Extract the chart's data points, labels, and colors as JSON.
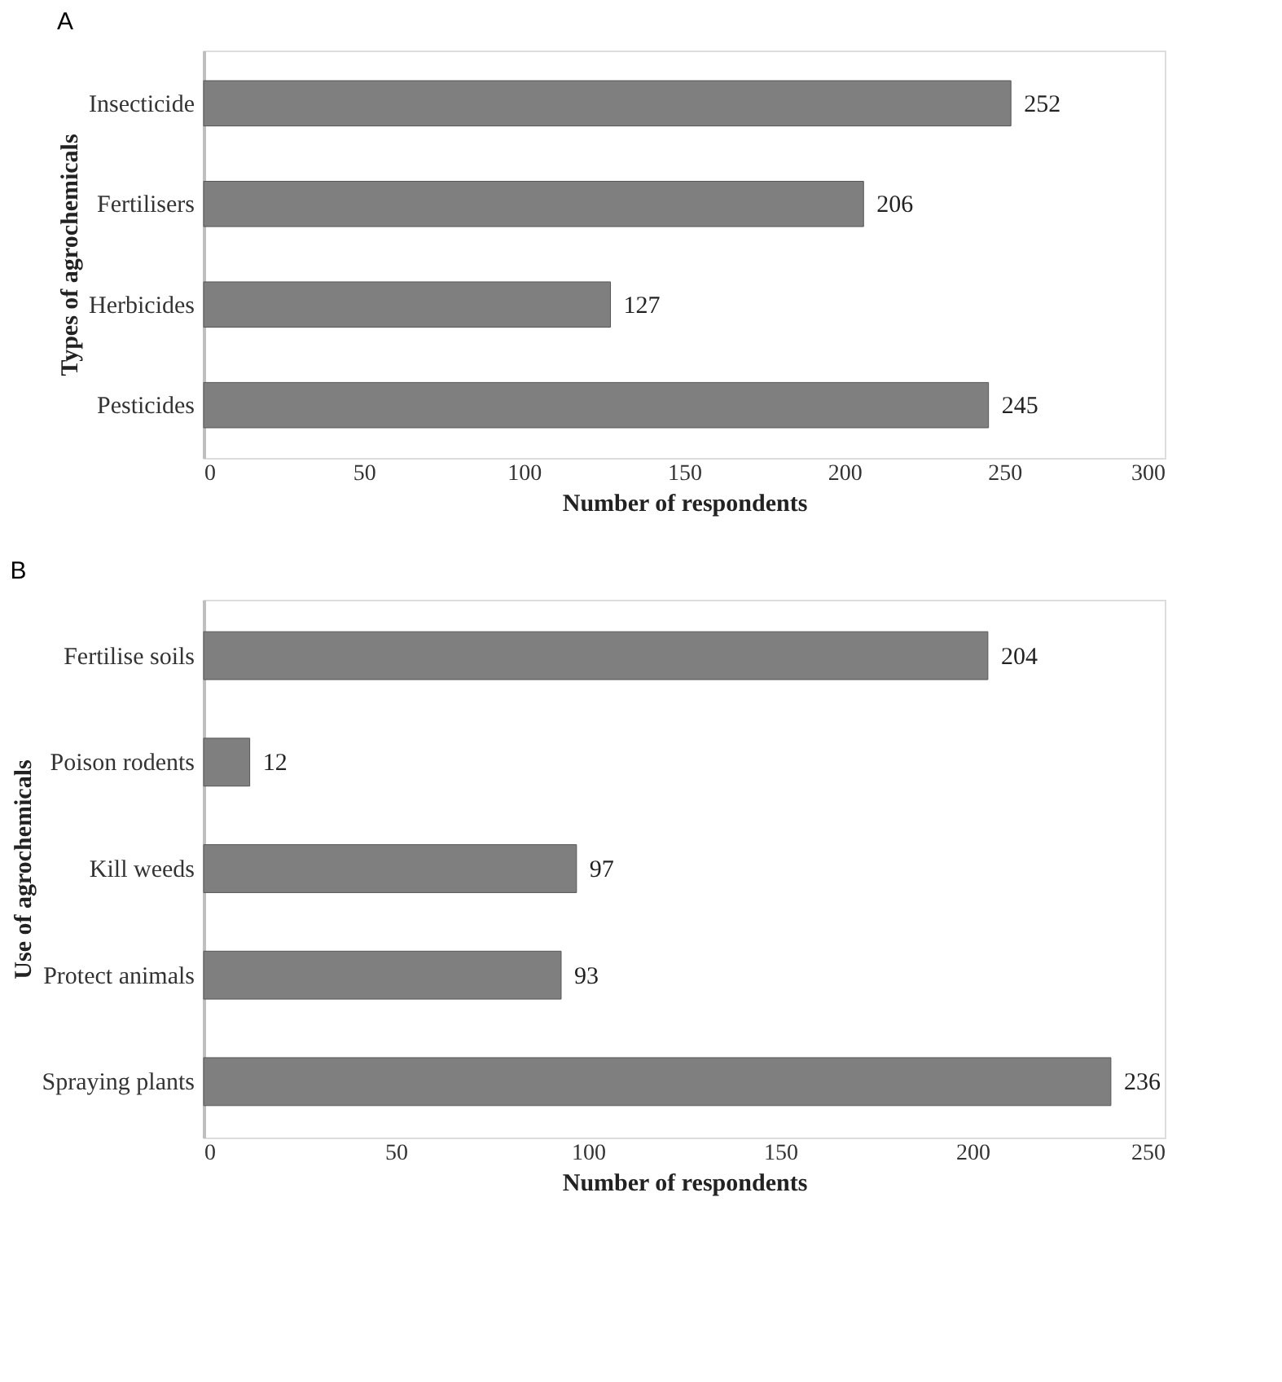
{
  "chart_data": [
    {
      "type": "bar",
      "orientation": "horizontal",
      "annotations": [
        "A"
      ],
      "xlabel": "Number of respondents",
      "ylabel": "Types of agrochemicals",
      "categories": [
        "Insecticide",
        "Fertilisers",
        "Herbicides",
        "Pesticides"
      ],
      "values": [
        252,
        206,
        127,
        245
      ],
      "color": "#7f7f7f",
      "xlim": [
        0,
        300
      ],
      "xticks": [
        0,
        50,
        100,
        150,
        200,
        250,
        300
      ],
      "data_labels": true,
      "grid": false
    },
    {
      "type": "bar",
      "orientation": "horizontal",
      "annotations": [
        "B"
      ],
      "xlabel": "Number of respondents",
      "ylabel": "Use of agrochemicals",
      "categories": [
        "Fertilise soils",
        "Poison rodents",
        "Kill weeds",
        "Protect animals",
        "Spraying plants"
      ],
      "values": [
        204,
        12,
        97,
        93,
        236
      ],
      "color": "#7f7f7f",
      "xlim": [
        0,
        250
      ],
      "xticks": [
        0,
        50,
        100,
        150,
        200,
        250
      ],
      "data_labels": true,
      "grid": false
    }
  ]
}
